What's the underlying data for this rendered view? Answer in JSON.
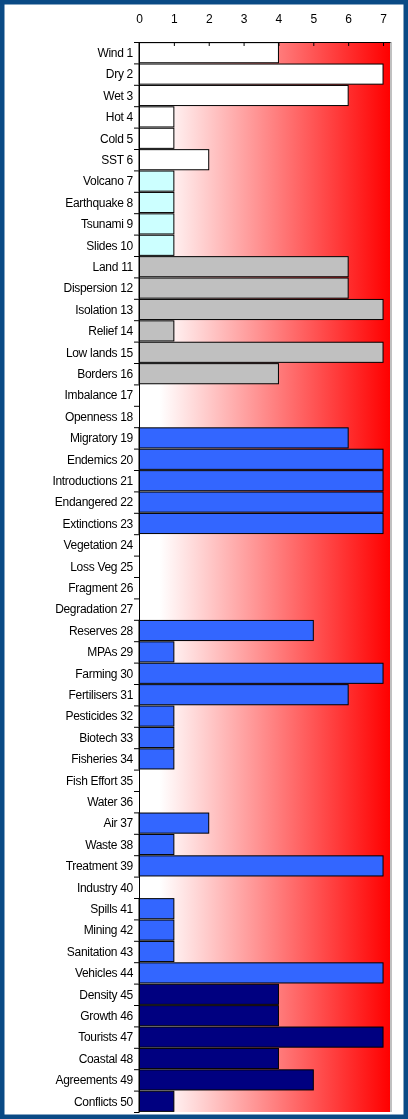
{
  "chart_data": {
    "type": "bar",
    "orientation": "horizontal",
    "categories": [
      "Wind 1",
      "Dry 2",
      "Wet 3",
      "Hot 4",
      "Cold 5",
      "SST 6",
      "Volcano 7",
      "Earthquake 8",
      "Tsunami 9",
      "Slides 10",
      "Land 11",
      "Dispersion 12",
      "Isolation 13",
      "Relief 14",
      "Low lands 15",
      "Borders 16",
      "Imbalance 17",
      "Openness 18",
      "Migratory 19",
      "Endemics 20",
      "Introductions 21",
      "Endangered 22",
      "Extinctions 23",
      "Vegetation 24",
      "Loss Veg 25",
      "Fragment 26",
      "Degradation 27",
      "Reserves 28",
      "MPAs 29",
      "Farming 30",
      "Fertilisers 31",
      "Pesticides 32",
      "Biotech 33",
      "Fisheries 34",
      "Fish Effort 35",
      "Water 36",
      "Air 37",
      "Waste 38",
      "Treatment 39",
      "Industry 40",
      "Spills 41",
      "Mining 42",
      "Sanitation 43",
      "Vehicles 44",
      "Density 45",
      "Growth 46",
      "Tourists 47",
      "Coastal 48",
      "Agreements 49",
      "Conflicts 50"
    ],
    "values": [
      4,
      7,
      6,
      1,
      1,
      2,
      1,
      1,
      1,
      1,
      6,
      6,
      7,
      1,
      7,
      4,
      null,
      null,
      6,
      7,
      7,
      7,
      7,
      null,
      null,
      null,
      null,
      5,
      1,
      7,
      6,
      1,
      1,
      1,
      null,
      null,
      2,
      1,
      7,
      null,
      1,
      1,
      1,
      7,
      4,
      4,
      7,
      4,
      5,
      1
    ],
    "colors": [
      "#ffffff",
      "#ffffff",
      "#ffffff",
      "#ffffff",
      "#ffffff",
      "#ffffff",
      "#ccffff",
      "#ccffff",
      "#ccffff",
      "#ccffff",
      "#c0c0c0",
      "#c0c0c0",
      "#c0c0c0",
      "#c0c0c0",
      "#c0c0c0",
      "#c0c0c0",
      null,
      null,
      "#3366ff",
      "#3366ff",
      "#3366ff",
      "#3366ff",
      "#3366ff",
      null,
      null,
      null,
      null,
      "#3366ff",
      "#3366ff",
      "#3366ff",
      "#3366ff",
      "#3366ff",
      "#3366ff",
      "#3366ff",
      null,
      null,
      "#3366ff",
      "#3366ff",
      "#3366ff",
      null,
      "#3366ff",
      "#3366ff",
      "#3366ff",
      "#3366ff",
      "#000080",
      "#000080",
      "#000080",
      "#000080",
      "#000080",
      "#000080"
    ],
    "xlim": [
      0,
      7.2
    ],
    "xticks": [
      0,
      1,
      2,
      3,
      4,
      5,
      6,
      7
    ],
    "bands": [
      {
        "axis": "x",
        "from": 0.6,
        "to": 7.2,
        "color": "#ff0000"
      }
    ],
    "grid": false
  }
}
